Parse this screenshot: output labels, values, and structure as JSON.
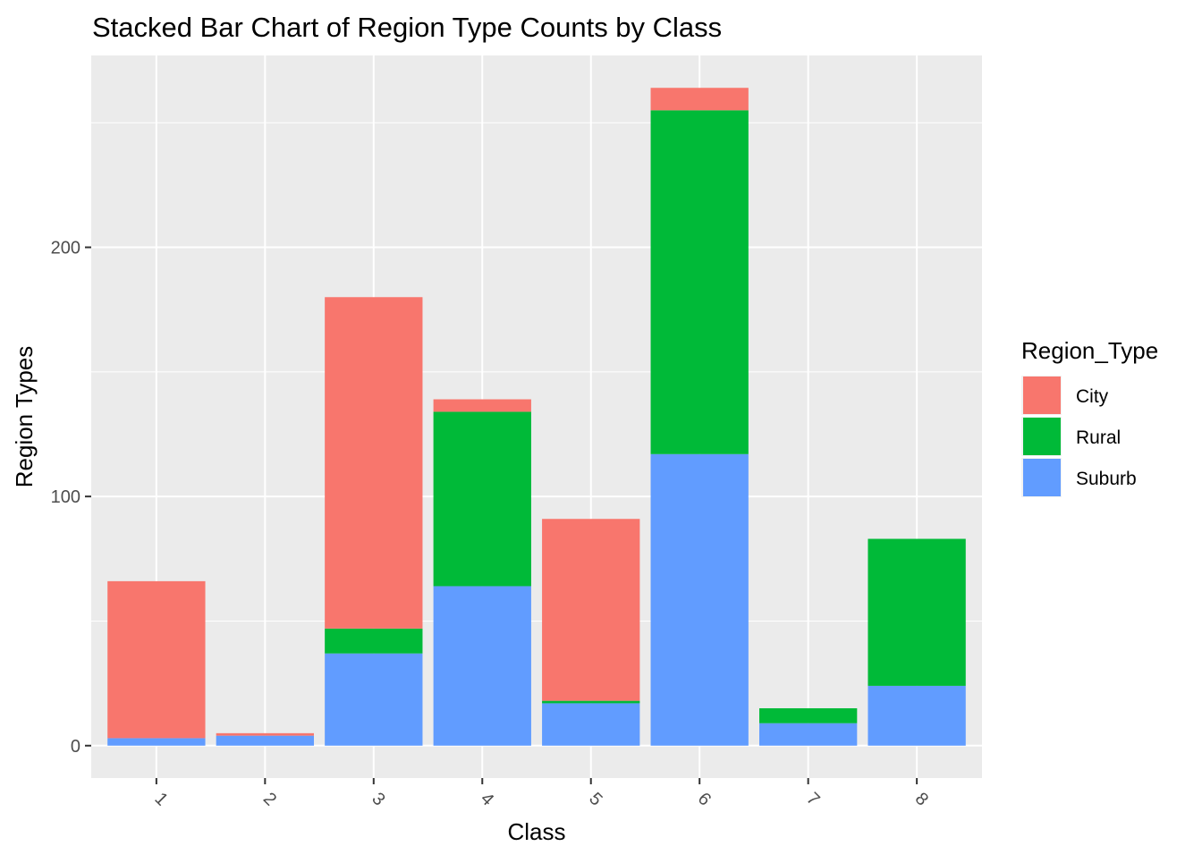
{
  "chart_data": {
    "type": "bar",
    "stacked": true,
    "title": "Stacked Bar Chart of Region Type Counts by Class",
    "xlabel": "Class",
    "ylabel": "Region Types",
    "categories": [
      "1",
      "2",
      "3",
      "4",
      "5",
      "6",
      "7",
      "8"
    ],
    "series": [
      {
        "name": "Suburb",
        "color": "#619CFF",
        "values": [
          3,
          4,
          37,
          64,
          17,
          117,
          9,
          24
        ]
      },
      {
        "name": "Rural",
        "color": "#00BA38",
        "values": [
          0,
          0,
          10,
          70,
          1,
          138,
          6,
          59
        ]
      },
      {
        "name": "City",
        "color": "#F8766D",
        "values": [
          63,
          1,
          133,
          5,
          73,
          9,
          0,
          0
        ]
      }
    ],
    "ylim": [
      -13,
      277
    ],
    "yticks": [
      0,
      100,
      200
    ],
    "grid": true,
    "x_tick_rotation_deg": 45,
    "legend": {
      "title": "Region_Type",
      "position": "right",
      "entries": [
        "City",
        "Rural",
        "Suburb"
      ]
    },
    "panel_background": "#EBEBEB",
    "grid_color": "#FFFFFF"
  }
}
